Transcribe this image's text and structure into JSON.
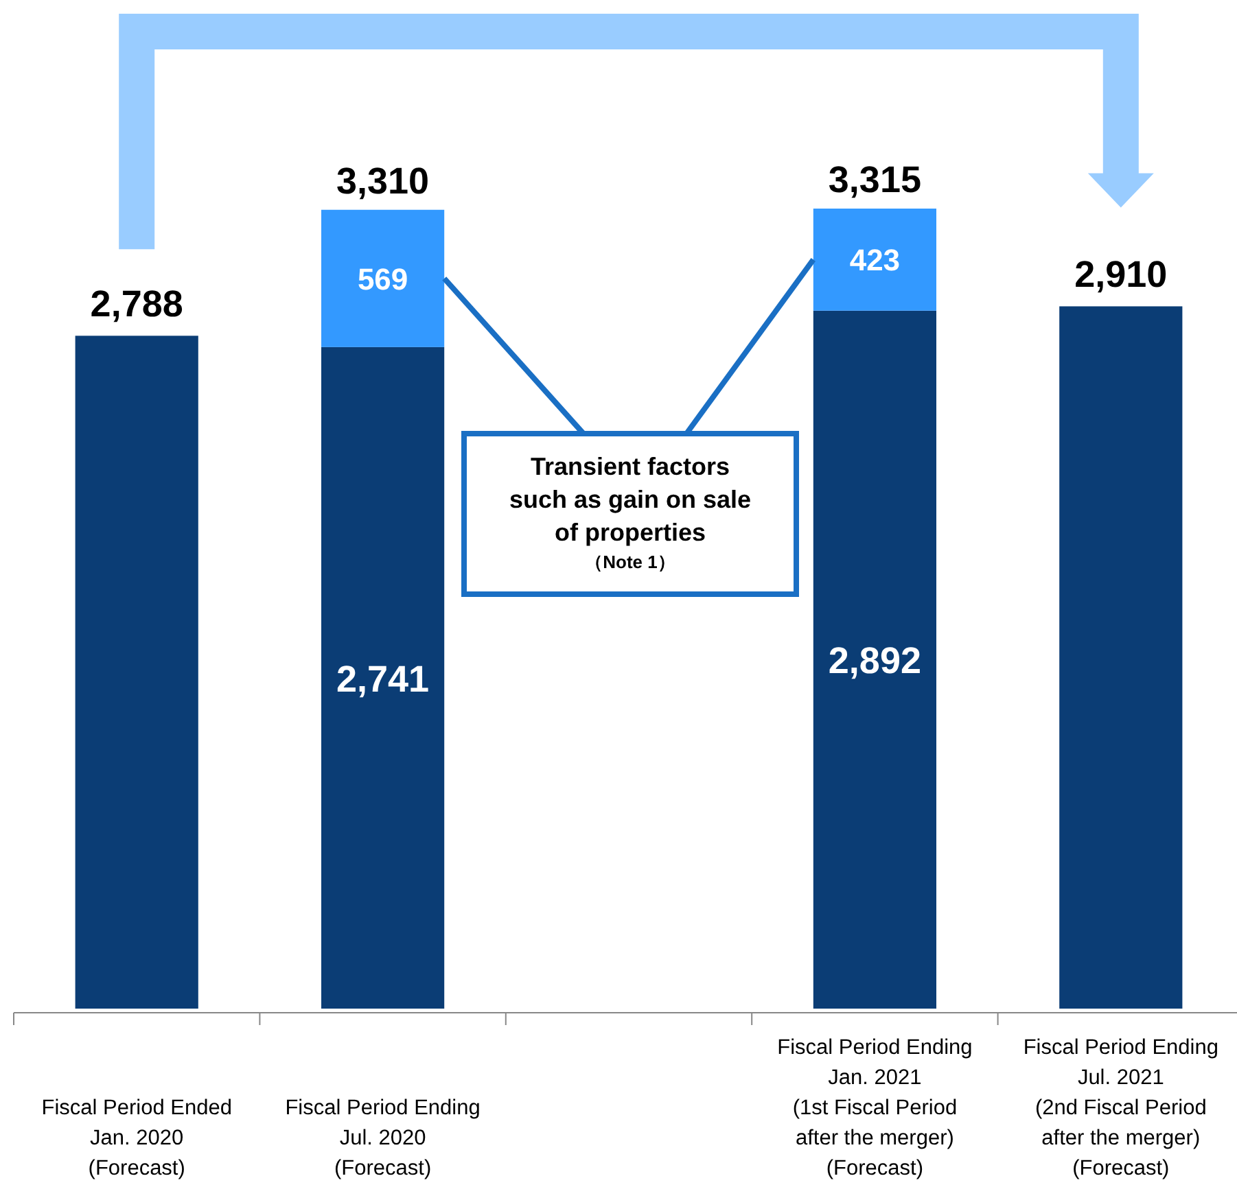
{
  "chart_data": {
    "type": "bar",
    "stacked": true,
    "categories": [
      "Fiscal Period Ended\nJan. 2020\n(Forecast)",
      "Fiscal Period Ending\nJul. 2020\n(Forecast)",
      null,
      "Fiscal Period Ending\nJan. 2021\n(1st Fiscal Period\nafter the merger)\n(Forecast)",
      "Fiscal Period Ending\nJul. 2021\n(2nd Fiscal Period\nafter the merger)\n(Forecast)"
    ],
    "series": [
      {
        "color": "#0b3d75",
        "values": [
          2788,
          2741,
          null,
          2892,
          2910
        ],
        "value_labels": [
          "2,788",
          "2,741",
          null,
          "2,892",
          "2,910"
        ]
      },
      {
        "color": "#3399ff",
        "values": [
          null,
          569,
          null,
          423,
          null
        ],
        "value_labels": [
          null,
          "569",
          null,
          "423",
          null
        ]
      }
    ],
    "totals": [
      null,
      "3,310",
      null,
      "3,315",
      null
    ],
    "annotations": [
      "Transient factors\nsuch as gain on sale\nof properties\n（Note 1）"
    ]
  }
}
